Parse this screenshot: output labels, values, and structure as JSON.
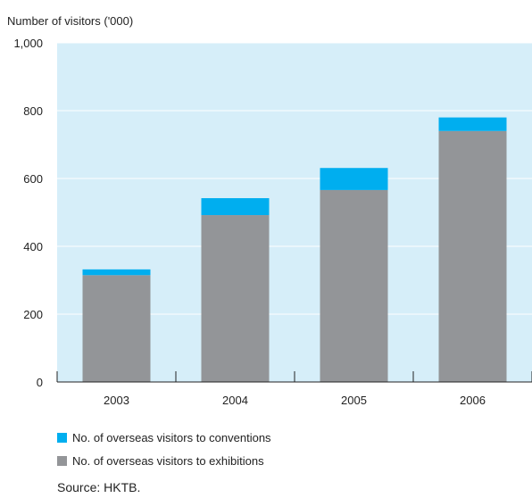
{
  "chart_data": {
    "type": "bar",
    "stacked": true,
    "ylabel": "Number of visitors ('000)",
    "ylim": [
      0,
      1000
    ],
    "yticks": [
      "0",
      "200",
      "400",
      "600",
      "800",
      "1,000"
    ],
    "ytick_values": [
      0,
      200,
      400,
      600,
      800,
      1000
    ],
    "categories": [
      "2003",
      "2004",
      "2005",
      "2006"
    ],
    "series": [
      {
        "name": "No. of overseas visitors to exhibitions",
        "color": "#939598",
        "values": [
          315,
          492,
          566,
          740
        ]
      },
      {
        "name": "No. of overseas visitors to conventions",
        "color": "#00aeef",
        "values": [
          17,
          50,
          65,
          40
        ]
      }
    ],
    "legend": [
      "No. of overseas visitors to conventions",
      "No. of overseas visitors to exhibitions"
    ],
    "legend_placement": "bottom-left",
    "grid": true,
    "background": "#d6eef9"
  },
  "source": "Source: HKTB."
}
